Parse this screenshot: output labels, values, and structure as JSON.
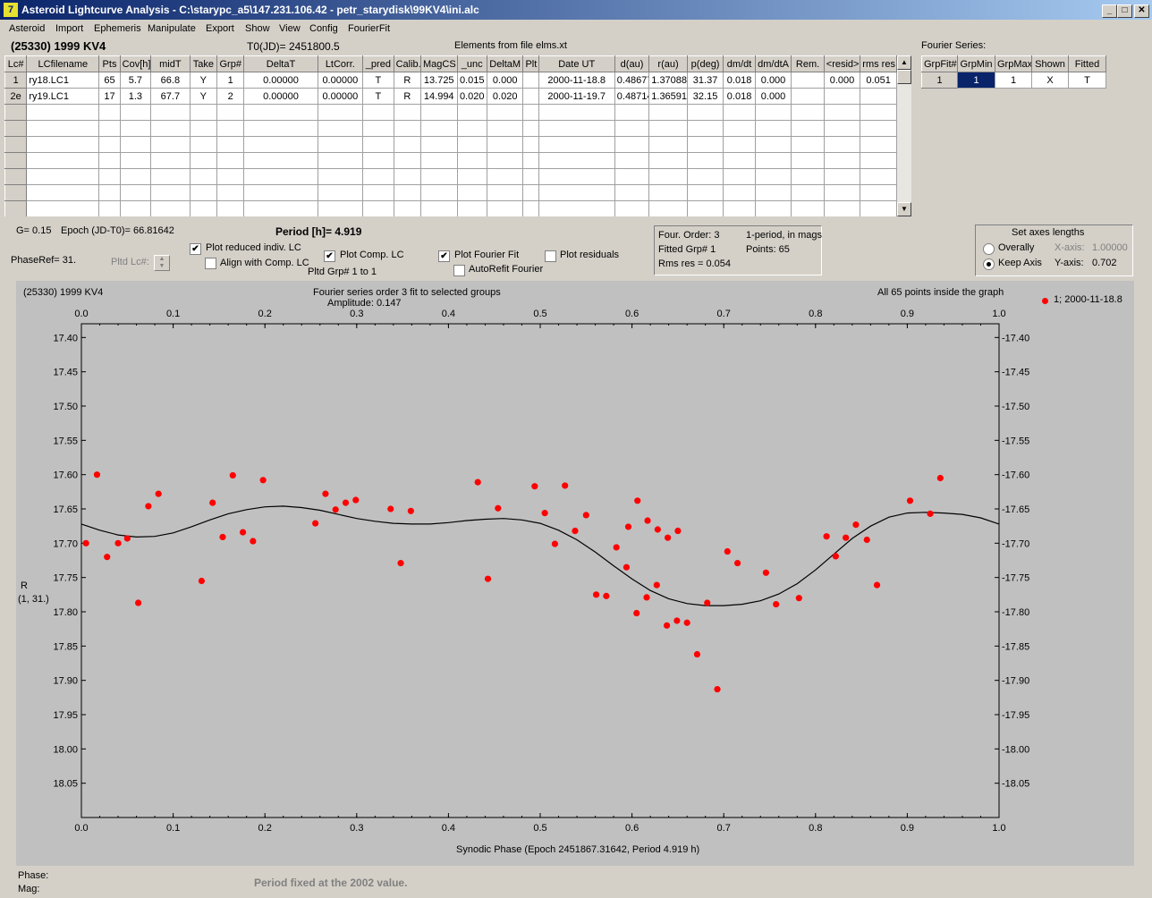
{
  "window": {
    "title": "Asteroid Lightcurve Analysis - C:\\starypc_a5\\147.231.106.42 - petr_starydisk\\99KV4\\ini.alc",
    "icon": "app-icon",
    "min_label": "_",
    "max_label": "□",
    "close_label": "✕"
  },
  "menu": [
    "Asteroid",
    "Import",
    "Ephemeris",
    "Manipulate",
    "Export",
    "Show",
    "View",
    "Config",
    "FourierFit"
  ],
  "header": {
    "asteroid": "(25330) 1999 KV4",
    "t0": "T0(JD)= 2451800.5",
    "elements": "Elements from file elms.xt"
  },
  "lc_table": {
    "columns": [
      "Lc#",
      "LCfilename",
      "Pts",
      "Cov[h]",
      "midT",
      "Take",
      "Grp#",
      "DeltaT",
      "LtCorr.",
      "_pred",
      "Calib.",
      "MagCS",
      "_unc",
      "DeltaM",
      "Plt",
      "Date UT",
      "d(au)",
      "r(au)",
      "p(deg)",
      "dm/dt",
      "dm/dtA",
      "Rem.",
      "<resid>",
      "rms res"
    ],
    "rows": [
      [
        "1",
        "ry18.LC1",
        "65",
        "5.7",
        "66.8",
        "Y",
        "1",
        "0.00000",
        "0.00000",
        "T",
        "R",
        "13.725",
        "0.015",
        "0.000",
        "",
        "2000-11-18.8",
        "0.48677",
        "1.37088",
        "31.37",
        "0.018",
        "0.000",
        "",
        "0.000",
        "0.051"
      ],
      [
        "2e",
        "ry19.LC1",
        "17",
        "1.3",
        "67.7",
        "Y",
        "2",
        "0.00000",
        "0.00000",
        "T",
        "R",
        "14.994",
        "0.020",
        "0.020",
        "",
        "2000-11-19.7",
        "0.48714",
        "1.36591",
        "32.15",
        "0.018",
        "0.000",
        "",
        "",
        ""
      ]
    ],
    "empty_rows": 7
  },
  "fourier_series": {
    "label": "Fourier Series:",
    "columns": [
      "GrpFit#",
      "GrpMin",
      "GrpMax",
      "Shown",
      "Fitted"
    ],
    "row": [
      "1",
      "1",
      "1",
      "X",
      "T"
    ]
  },
  "params": {
    "g": "G= 0.15",
    "epoch": "Epoch (JD-T0)= 66.81642",
    "period": "Period [h]= 4.919",
    "phaseref": "PhaseRef= 31.",
    "pltd_lc": "Pltd Lc#:"
  },
  "options": {
    "plot_reduced": {
      "label": "Plot reduced indiv. LC",
      "checked": true
    },
    "align_comp": {
      "label": "Align with Comp. LC",
      "checked": false
    },
    "plot_comp": {
      "label": "Plot Comp. LC",
      "checked": true
    },
    "pltd_grp": "Pltd Grp#  1   to   1",
    "plot_fourier": {
      "label": "Plot Fourier Fit",
      "checked": true
    },
    "autorefit": {
      "label": "AutoRefit Fourier",
      "checked": false
    },
    "plot_residuals": {
      "label": "Plot residuals",
      "checked": false
    }
  },
  "fit_info": {
    "order": "Four. Order:  3",
    "mode": "1-period, in mags",
    "fitted": "Fitted Grp# 1",
    "points": "Points: 65",
    "rms": "Rms res     = 0.054"
  },
  "axes_box": {
    "title": "Set axes lengths",
    "overally": "Overally",
    "keep": "Keep Axis",
    "selected": "keep",
    "xaxis_label": "X-axis:",
    "xaxis_val": "1.00000",
    "yaxis_label": "Y-axis:",
    "yaxis_val": "0.702"
  },
  "plot": {
    "name": "(25330) 1999 KV4",
    "title": "Fourier series order 3 fit to selected groups",
    "amplitude": "Amplitude: 0.147",
    "inside": "All 65 points inside the graph",
    "legend": "1; 2000-11-18.8",
    "ylabel1": "R",
    "ylabel2": "(1, 31.)",
    "xlabel": "Synodic Phase (Epoch 2451867.31642, Period 4.919 h)",
    "point_color": "#ff0000"
  },
  "chart_data": {
    "type": "scatter",
    "xlim": [
      0.0,
      1.0
    ],
    "ylim": [
      18.1,
      17.38
    ],
    "x_ticks": [
      "0.0",
      "0.1",
      "0.2",
      "0.3",
      "0.4",
      "0.5",
      "0.6",
      "0.7",
      "0.8",
      "0.9",
      "1.0"
    ],
    "y_ticks": [
      "17.40",
      "17.45",
      "17.50",
      "17.55",
      "17.60",
      "17.65",
      "17.70",
      "17.75",
      "17.80",
      "17.85",
      "17.90",
      "17.95",
      "18.00",
      "18.05"
    ],
    "grid": false,
    "points": [
      [
        0.005,
        17.7
      ],
      [
        0.017,
        17.6
      ],
      [
        0.028,
        17.72
      ],
      [
        0.04,
        17.7
      ],
      [
        0.05,
        17.693
      ],
      [
        0.062,
        17.787
      ],
      [
        0.073,
        17.646
      ],
      [
        0.084,
        17.628
      ],
      [
        0.131,
        17.755
      ],
      [
        0.143,
        17.641
      ],
      [
        0.154,
        17.691
      ],
      [
        0.165,
        17.601
      ],
      [
        0.176,
        17.684
      ],
      [
        0.187,
        17.697
      ],
      [
        0.198,
        17.608
      ],
      [
        0.255,
        17.671
      ],
      [
        0.266,
        17.628
      ],
      [
        0.277,
        17.651
      ],
      [
        0.288,
        17.641
      ],
      [
        0.299,
        17.637
      ],
      [
        0.337,
        17.65
      ],
      [
        0.348,
        17.729
      ],
      [
        0.359,
        17.653
      ],
      [
        0.432,
        17.611
      ],
      [
        0.443,
        17.752
      ],
      [
        0.454,
        17.649
      ],
      [
        0.494,
        17.617
      ],
      [
        0.505,
        17.656
      ],
      [
        0.516,
        17.701
      ],
      [
        0.527,
        17.616
      ],
      [
        0.538,
        17.682
      ],
      [
        0.55,
        17.659
      ],
      [
        0.561,
        17.775
      ],
      [
        0.572,
        17.777
      ],
      [
        0.583,
        17.706
      ],
      [
        0.594,
        17.735
      ],
      [
        0.596,
        17.676
      ],
      [
        0.605,
        17.802
      ],
      [
        0.606,
        17.638
      ],
      [
        0.616,
        17.779
      ],
      [
        0.617,
        17.667
      ],
      [
        0.627,
        17.761
      ],
      [
        0.628,
        17.68
      ],
      [
        0.638,
        17.82
      ],
      [
        0.639,
        17.692
      ],
      [
        0.649,
        17.813
      ],
      [
        0.65,
        17.682
      ],
      [
        0.66,
        17.816
      ],
      [
        0.671,
        17.862
      ],
      [
        0.682,
        17.787
      ],
      [
        0.693,
        17.913
      ],
      [
        0.704,
        17.712
      ],
      [
        0.715,
        17.729
      ],
      [
        0.746,
        17.743
      ],
      [
        0.757,
        17.789
      ],
      [
        0.782,
        17.78
      ],
      [
        0.812,
        17.69
      ],
      [
        0.822,
        17.719
      ],
      [
        0.833,
        17.692
      ],
      [
        0.844,
        17.673
      ],
      [
        0.856,
        17.695
      ],
      [
        0.867,
        17.761
      ],
      [
        0.903,
        17.638
      ],
      [
        0.925,
        17.657
      ],
      [
        0.936,
        17.605
      ]
    ],
    "fit_curve": [
      [
        0.0,
        17.672
      ],
      [
        0.02,
        17.681
      ],
      [
        0.04,
        17.688
      ],
      [
        0.06,
        17.691
      ],
      [
        0.08,
        17.69
      ],
      [
        0.1,
        17.685
      ],
      [
        0.12,
        17.676
      ],
      [
        0.14,
        17.666
      ],
      [
        0.16,
        17.657
      ],
      [
        0.18,
        17.651
      ],
      [
        0.2,
        17.647
      ],
      [
        0.22,
        17.646
      ],
      [
        0.24,
        17.648
      ],
      [
        0.26,
        17.652
      ],
      [
        0.28,
        17.658
      ],
      [
        0.3,
        17.664
      ],
      [
        0.32,
        17.668
      ],
      [
        0.34,
        17.671
      ],
      [
        0.36,
        17.672
      ],
      [
        0.38,
        17.672
      ],
      [
        0.4,
        17.67
      ],
      [
        0.42,
        17.667
      ],
      [
        0.44,
        17.665
      ],
      [
        0.46,
        17.664
      ],
      [
        0.48,
        17.666
      ],
      [
        0.5,
        17.671
      ],
      [
        0.52,
        17.681
      ],
      [
        0.54,
        17.695
      ],
      [
        0.56,
        17.713
      ],
      [
        0.58,
        17.733
      ],
      [
        0.6,
        17.752
      ],
      [
        0.62,
        17.769
      ],
      [
        0.64,
        17.781
      ],
      [
        0.66,
        17.788
      ],
      [
        0.68,
        17.791
      ],
      [
        0.7,
        17.791
      ],
      [
        0.72,
        17.789
      ],
      [
        0.74,
        17.784
      ],
      [
        0.76,
        17.774
      ],
      [
        0.78,
        17.759
      ],
      [
        0.8,
        17.739
      ],
      [
        0.82,
        17.716
      ],
      [
        0.84,
        17.693
      ],
      [
        0.86,
        17.675
      ],
      [
        0.88,
        17.662
      ],
      [
        0.9,
        17.656
      ],
      [
        0.92,
        17.655
      ],
      [
        0.94,
        17.656
      ],
      [
        0.96,
        17.658
      ],
      [
        0.98,
        17.663
      ],
      [
        1.0,
        17.672
      ]
    ]
  },
  "status": {
    "phase": "Phase:",
    "mag": "Mag:",
    "note": "Period fixed at the 2002 value."
  }
}
